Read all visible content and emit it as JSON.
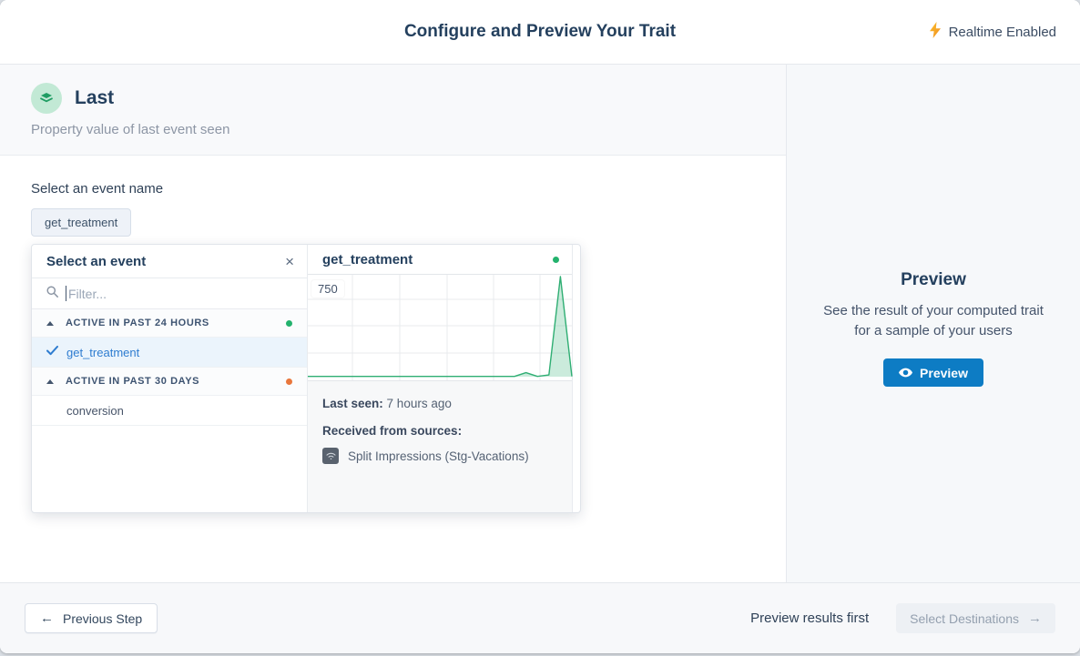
{
  "header": {
    "title": "Configure and Preview Your Trait",
    "realtime_label": "Realtime Enabled"
  },
  "trait": {
    "name": "Last",
    "description": "Property value of last event seen"
  },
  "event_selector": {
    "label": "Select an event name",
    "selected_chip": "get_treatment",
    "popover": {
      "title": "Select an event",
      "filter_placeholder": "Filter...",
      "groups": [
        {
          "label": "ACTIVE IN PAST 24 HOURS",
          "dot_color": "#23b26d",
          "items": [
            {
              "label": "get_treatment",
              "selected": true
            }
          ]
        },
        {
          "label": "ACTIVE IN PAST 30 DAYS",
          "dot_color": "#e9773c",
          "items": [
            {
              "label": "conversion",
              "selected": false
            }
          ]
        }
      ]
    },
    "detail": {
      "title": "get_treatment",
      "status_dot_color": "#23b26d",
      "last_seen_label": "Last seen:",
      "last_seen_value": "7 hours ago",
      "sources_label": "Received from sources:",
      "source_name": "Split Impressions (Stg-Vacations)"
    }
  },
  "chart_data": {
    "type": "area",
    "title": "get_treatment event volume sparkline",
    "y_tick_label": "750",
    "ymax": 750,
    "x": "time (unlabeled)",
    "values": [
      2,
      2,
      2,
      2,
      2,
      2,
      2,
      2,
      2,
      2,
      2,
      2,
      2,
      2,
      2,
      2,
      2,
      2,
      2,
      30,
      2,
      13,
      750,
      2
    ],
    "line_color": "#2fae73",
    "fill_color": "rgba(47,174,115,0.25)",
    "grid": true,
    "legend": "none"
  },
  "preview_panel": {
    "title": "Preview",
    "description_line1": "See the result of your computed trait",
    "description_line2": "for a sample of your users",
    "button_label": "Preview"
  },
  "footer": {
    "previous_label": "Previous Step",
    "hint": "Preview results first",
    "next_label": "Select Destinations"
  },
  "icons": {
    "close": "×",
    "arrow_left": "←",
    "arrow_right": "→"
  },
  "colors": {
    "accent_blue": "#0d7cc4",
    "selected_blue": "#2e7cd0",
    "active_green": "#23b26d",
    "active_orange": "#e9773c",
    "bolt_yellow": "#f9a825",
    "line_green": "#2fae73"
  }
}
